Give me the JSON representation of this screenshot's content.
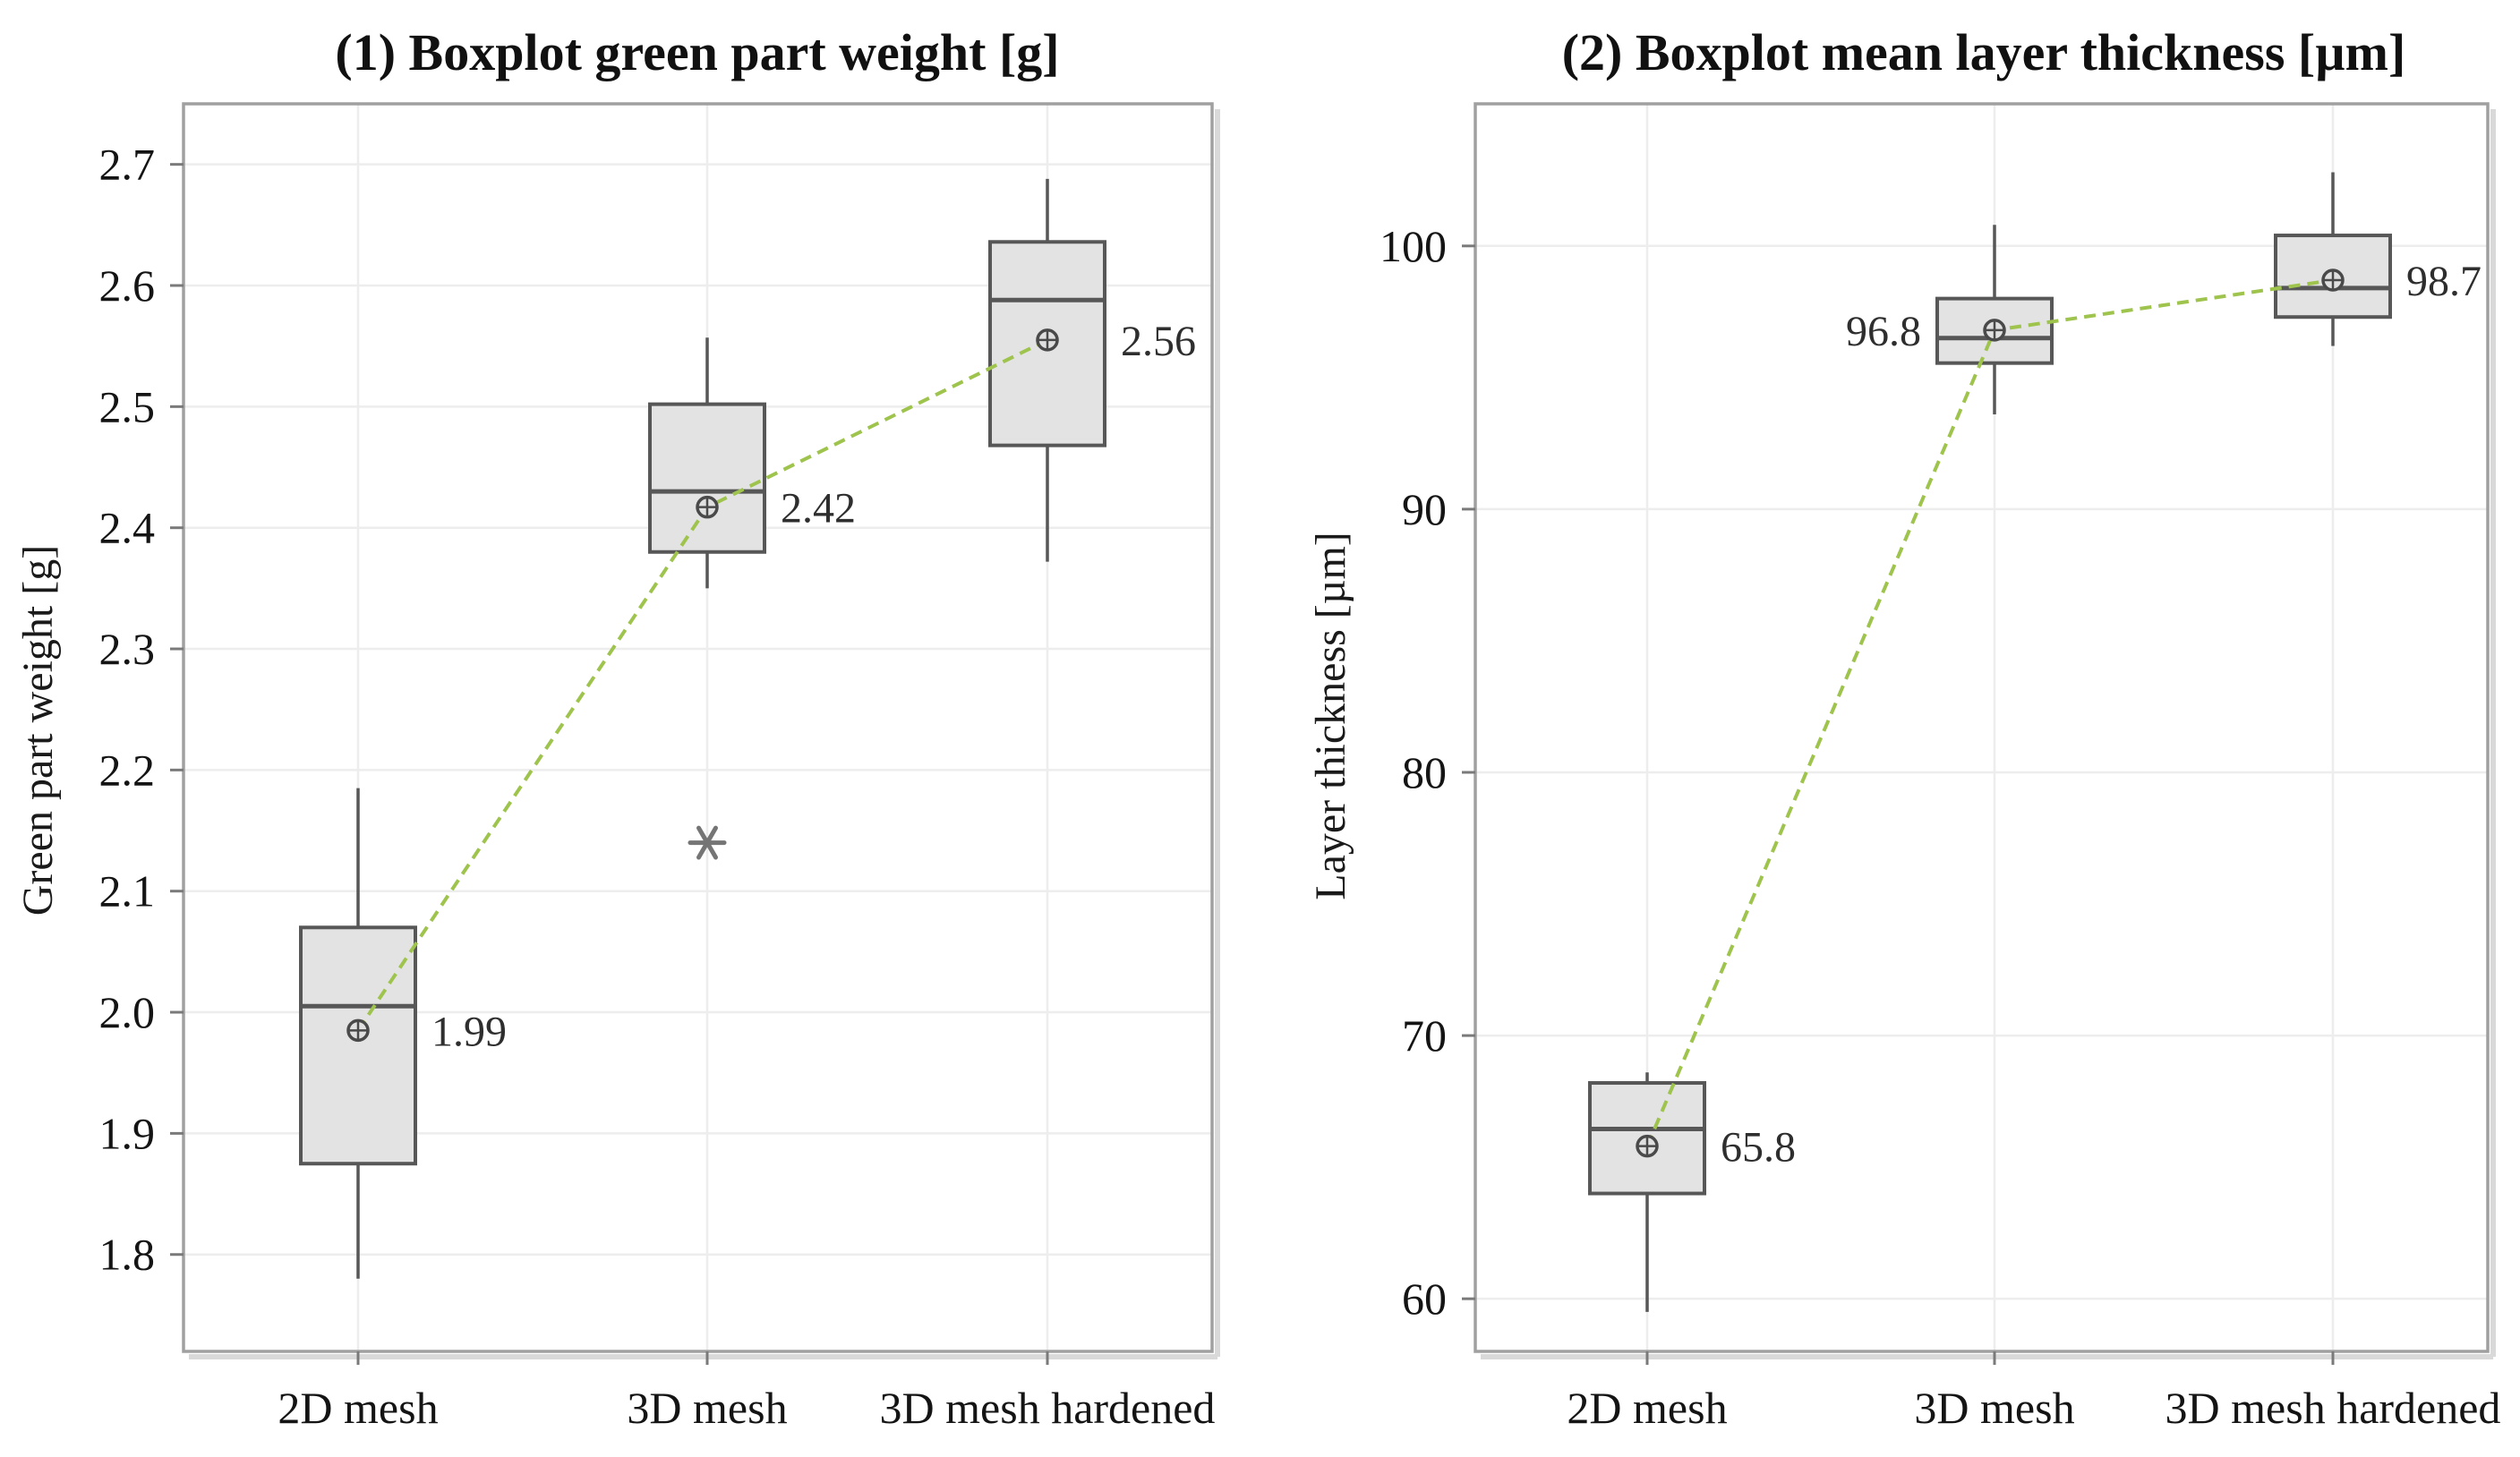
{
  "figure": {
    "background": "#ffffff",
    "frame_color": "#a0a0a0",
    "frame_shadow_color": "#d9d9d9",
    "gridline_color": "#ededed",
    "box_fill": "#e3e3e3",
    "box_stroke": "#575757",
    "whisker_color": "#575757",
    "outlier_color": "#757575",
    "mean_marker_stroke": "#4a4a4a",
    "mean_marker_fill": "#e0e0e0",
    "tick_color": "#7a7a7a"
  },
  "chart_data": [
    {
      "type": "boxplot",
      "title": "(1) Boxplot green part weight [g]",
      "ylabel": "Green part weight [g]",
      "xlabel": "",
      "ylim": [
        1.72,
        2.75
      ],
      "yticks": [
        1.8,
        1.9,
        2.0,
        2.1,
        2.2,
        2.3,
        2.4,
        2.5,
        2.6,
        2.7
      ],
      "ytick_labels": [
        "1.8",
        "1.9",
        "2.0",
        "2.1",
        "2.2",
        "2.3",
        "2.4",
        "2.5",
        "2.6",
        "2.7"
      ],
      "grid": true,
      "legend": "none",
      "categories": [
        "2D mesh",
        "3D mesh",
        "3D mesh hardened"
      ],
      "mean_line_color": "#9fc44d",
      "boxes": [
        {
          "category": "2D mesh",
          "whisker_low": 1.78,
          "q1": 1.875,
          "median": 2.005,
          "q3": 2.07,
          "whisker_high": 2.185,
          "mean": 1.985,
          "mean_label": "1.99",
          "label_side": "right",
          "outliers": []
        },
        {
          "category": "3D mesh",
          "whisker_low": 2.35,
          "q1": 2.38,
          "median": 2.43,
          "q3": 2.502,
          "whisker_high": 2.557,
          "mean": 2.417,
          "mean_label": "2.42",
          "label_side": "right",
          "outliers": [
            2.14
          ]
        },
        {
          "category": "3D mesh hardened",
          "whisker_low": 2.372,
          "q1": 2.468,
          "median": 2.588,
          "q3": 2.636,
          "whisker_high": 2.688,
          "mean": 2.555,
          "mean_label": "2.56",
          "label_side": "right",
          "outliers": []
        }
      ]
    },
    {
      "type": "boxplot",
      "title": "(2) Boxplot mean layer thickness [µm]",
      "ylabel": "Layer thickness [µm]",
      "xlabel": "",
      "ylim": [
        58,
        105.4
      ],
      "yticks": [
        60,
        70,
        80,
        90,
        100
      ],
      "ytick_labels": [
        "60",
        "70",
        "80",
        "90",
        "100"
      ],
      "grid": true,
      "legend": "none",
      "categories": [
        "2D mesh",
        "3D mesh",
        "3D mesh hardened"
      ],
      "mean_line_color": "#9fc44d",
      "boxes": [
        {
          "category": "2D mesh",
          "whisker_low": 59.5,
          "q1": 64.0,
          "median": 66.45,
          "q3": 68.2,
          "whisker_high": 68.6,
          "mean": 65.8,
          "mean_label": "65.8",
          "label_side": "right",
          "outliers": []
        },
        {
          "category": "3D mesh",
          "whisker_low": 93.6,
          "q1": 95.55,
          "median": 96.5,
          "q3": 98.0,
          "whisker_high": 100.8,
          "mean": 96.8,
          "mean_label": "96.8",
          "label_side": "left",
          "outliers": []
        },
        {
          "category": "3D mesh hardened",
          "whisker_low": 96.2,
          "q1": 97.3,
          "median": 98.4,
          "q3": 100.4,
          "whisker_high": 102.8,
          "mean": 98.7,
          "mean_label": "98.7",
          "label_side": "right",
          "outliers": []
        }
      ]
    }
  ]
}
